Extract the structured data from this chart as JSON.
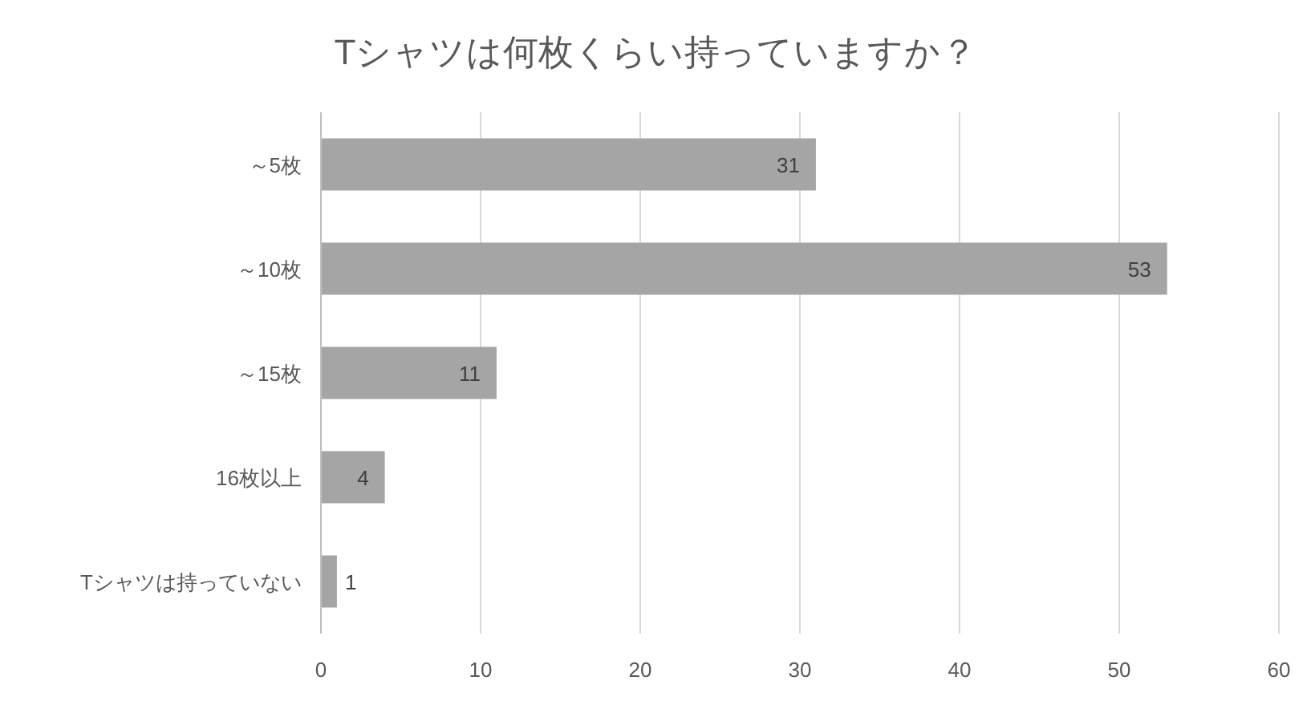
{
  "chart_data": {
    "type": "bar",
    "orientation": "horizontal",
    "title": "Tシャツは何枚くらい持っていますか？",
    "categories": [
      "～5枚",
      "～10枚",
      "～15枚",
      "16枚以上",
      "Tシャツは持っていない"
    ],
    "values": [
      31,
      53,
      11,
      4,
      1
    ],
    "color": "#a5a5a5",
    "xlim": [
      0,
      60
    ],
    "xticks": [
      0,
      10,
      20,
      30,
      40,
      50,
      60
    ],
    "grid": "x",
    "data_labels": true
  }
}
